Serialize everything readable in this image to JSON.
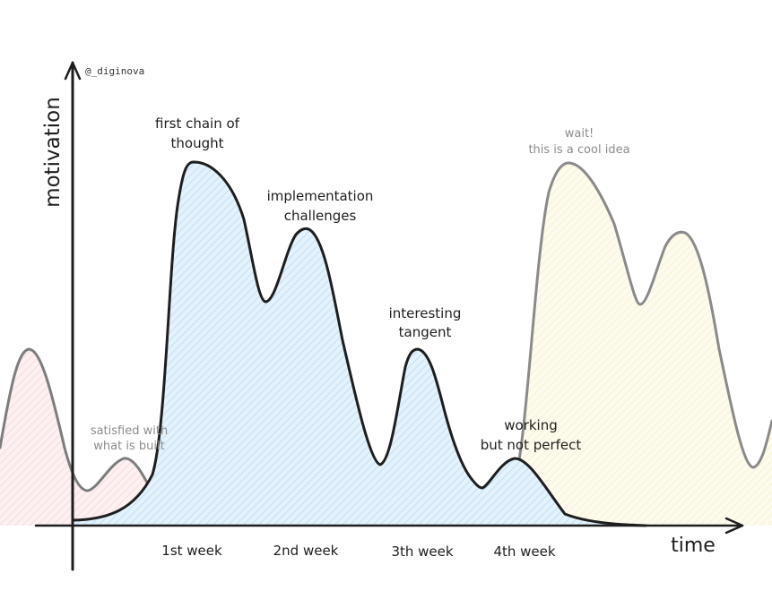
{
  "watermark": "@_diginova",
  "axes": {
    "y_label": "motivation",
    "x_label": "time"
  },
  "week_labels": [
    "1st week",
    "2nd week",
    "3th week",
    "4th week"
  ],
  "annotations": {
    "first_chain": [
      "first chain of",
      "thought"
    ],
    "implementation": [
      "implementation",
      "challenges"
    ],
    "interesting": [
      "interesting",
      "tangent"
    ],
    "working": [
      "working",
      "but not perfect"
    ],
    "satisfied": [
      "satisfied with",
      "what is built"
    ],
    "wait": [
      "wait!",
      "this is a cool idea"
    ]
  },
  "colors": {
    "main_fill": "#d6ebf9",
    "left_fill": "#fbe4e6",
    "right_fill": "#fcf8df",
    "main_stroke": "#1e1e1e",
    "faded_stroke": "#7d7d7d",
    "faded_text": "#8c8c8c"
  }
}
